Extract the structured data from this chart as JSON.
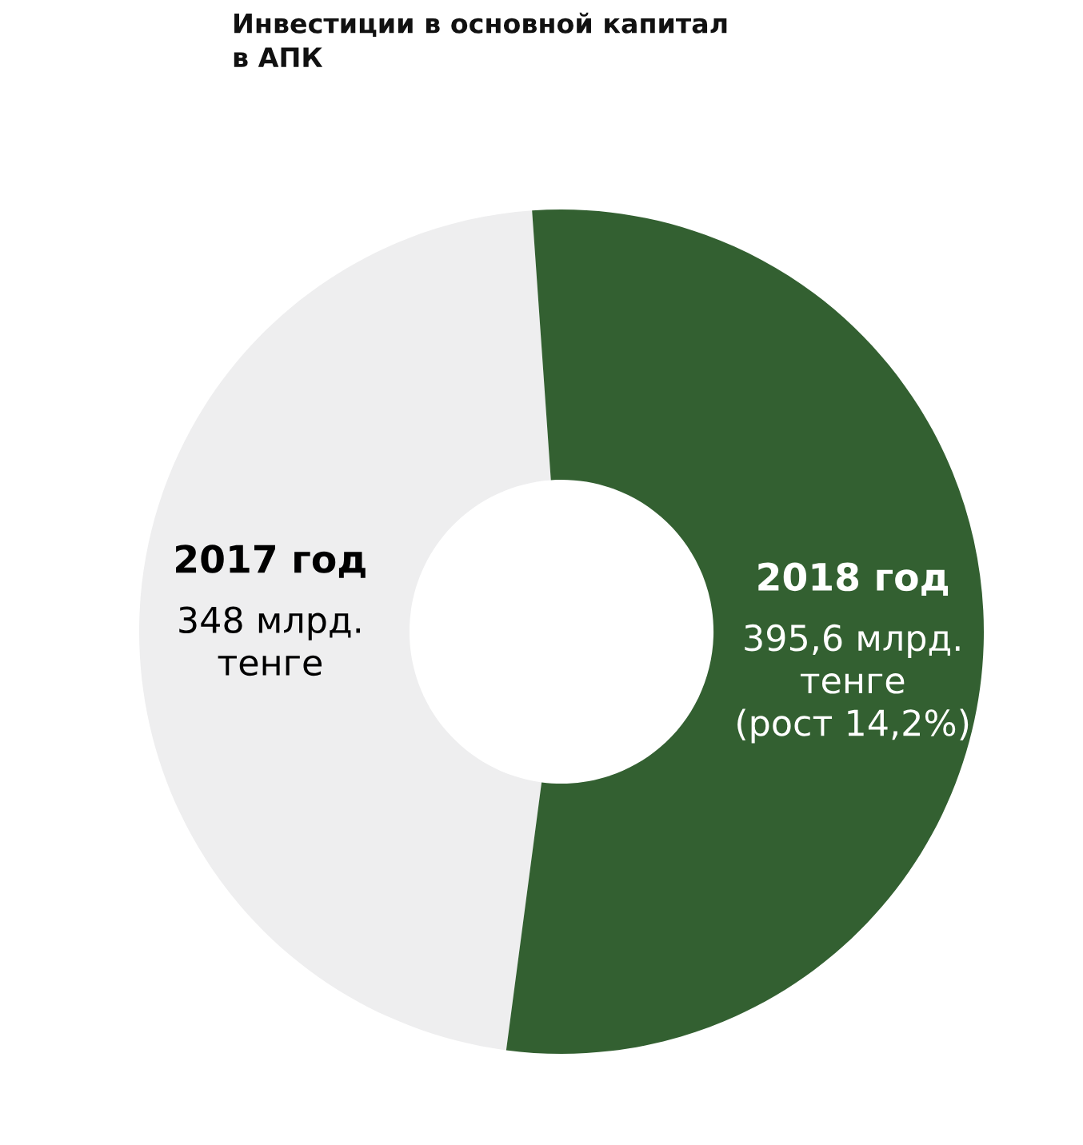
{
  "chart_data": {
    "type": "donut",
    "title": "Инвестиции в основной капитал\nв АПК",
    "categories": [
      "2017 год",
      "2018 год"
    ],
    "values": [
      348,
      395.6
    ],
    "colors": [
      "#eeeeef",
      "#336031"
    ],
    "value_labels": [
      "348 млрд.\nтенге",
      "395,6 млрд.\nтенге\n(рост 14,2%)"
    ]
  }
}
